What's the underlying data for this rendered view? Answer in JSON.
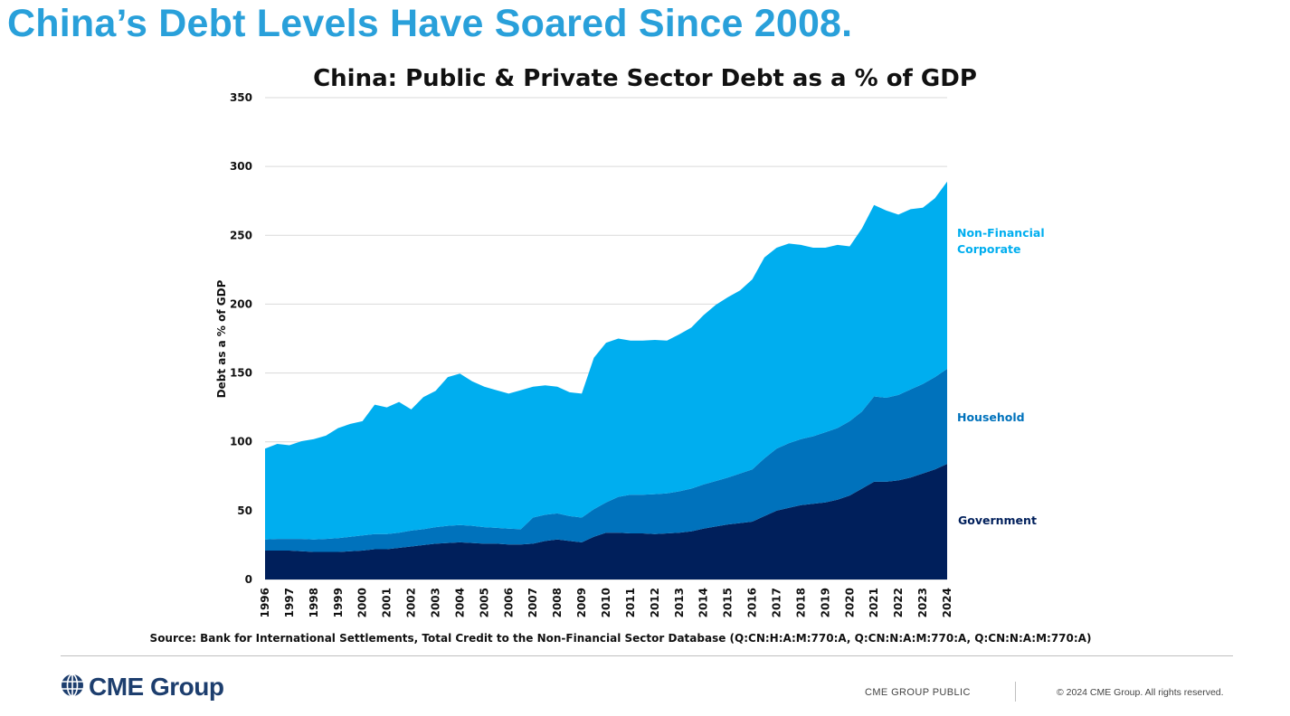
{
  "slide": {
    "title": "China’s Debt Levels Have Soared Since 2008."
  },
  "chart_data": {
    "type": "area",
    "stacked": true,
    "title": "China: Public & Private Sector Debt as a % of GDP",
    "xlabel": "",
    "ylabel": "Debt as a % of GDP",
    "ylim": [
      0,
      350
    ],
    "yticks": [
      0,
      50,
      100,
      150,
      200,
      250,
      300,
      350
    ],
    "xlim": [
      1996,
      2024
    ],
    "xticks": [
      "1996",
      "1997",
      "1998",
      "1999",
      "2000",
      "2001",
      "2002",
      "2003",
      "2004",
      "2005",
      "2006",
      "2007",
      "2008",
      "2009",
      "2010",
      "2011",
      "2012",
      "2013",
      "2014",
      "2015",
      "2016",
      "2017",
      "2018",
      "2019",
      "2020",
      "2021",
      "2022",
      "2023",
      "2024"
    ],
    "grid": true,
    "legend": "right-side inline labels",
    "x": [
      1996,
      1996.5,
      1997,
      1997.5,
      1998,
      1998.5,
      1999,
      1999.5,
      2000,
      2000.5,
      2001,
      2001.5,
      2002,
      2002.5,
      2003,
      2003.5,
      2004,
      2004.5,
      2005,
      2005.5,
      2006,
      2006.5,
      2007,
      2007.5,
      2008,
      2008.5,
      2009,
      2009.5,
      2010,
      2010.5,
      2011,
      2011.5,
      2012,
      2012.5,
      2013,
      2013.5,
      2014,
      2014.5,
      2015,
      2015.5,
      2016,
      2016.5,
      2017,
      2017.5,
      2018,
      2018.5,
      2019,
      2019.5,
      2020,
      2020.5,
      2021,
      2021.5,
      2022,
      2022.5,
      2023,
      2023.5,
      2024
    ],
    "series": [
      {
        "name": "Government",
        "color": "#001f5b",
        "values": [
          21,
          21,
          21,
          20.5,
          20,
          20,
          20,
          20.5,
          21,
          22,
          22,
          23,
          24,
          25,
          26,
          26.5,
          27,
          26.5,
          26,
          26,
          25.5,
          25.5,
          26,
          28,
          29,
          28,
          27,
          31,
          34,
          34,
          33.5,
          33.5,
          33,
          33.5,
          34,
          35,
          37,
          38.5,
          40,
          41,
          42,
          46,
          50,
          52,
          54,
          55,
          56,
          58,
          61,
          66,
          71,
          71,
          72,
          74,
          77,
          80,
          84
        ]
      },
      {
        "name": "Household",
        "values": [
          8,
          8.5,
          8.5,
          9,
          9,
          9.5,
          10,
          10.5,
          11,
          11,
          11,
          11,
          11.5,
          11.5,
          12,
          12.5,
          12.5,
          12.5,
          12,
          11.5,
          11.5,
          11,
          19,
          19,
          19,
          18,
          18,
          20,
          22,
          26,
          28,
          28,
          29,
          29,
          30,
          31,
          32,
          33,
          34,
          36,
          38,
          42,
          45,
          47,
          48,
          49,
          51,
          52,
          54,
          56,
          62,
          61,
          62,
          64,
          65,
          67,
          69
        ],
        "color": "#0072bc"
      },
      {
        "name": "Non-Financial Corporate",
        "values": [
          66,
          69,
          68,
          71,
          73,
          75,
          80,
          82,
          83,
          94,
          92,
          95,
          88,
          96,
          99,
          108,
          110,
          105,
          102,
          100,
          98,
          101,
          95,
          94,
          92,
          90,
          90,
          110,
          116,
          115,
          112,
          112,
          112,
          111,
          114,
          117,
          123,
          128,
          131,
          133,
          138,
          146,
          146,
          145,
          141,
          137,
          134,
          133,
          127,
          133,
          139,
          136,
          131,
          131,
          128,
          130,
          136
        ],
        "color": "#00aeef"
      }
    ],
    "source": "Source: Bank for International Settlements, Total Credit to the Non-Financial Sector Database (Q:CN:H:A:M:770:A, Q:CN:N:A:M:770:A, Q:CN:N:A:M:770:A)",
    "series_labels": {
      "corporate_line1": "Non-Financial",
      "corporate_line2": "Corporate",
      "household": "Household",
      "government": "Government"
    }
  },
  "footer": {
    "logo_text": "CME Group",
    "classification": "CME GROUP PUBLIC",
    "copyright": "© 2024 CME Group. All rights reserved."
  },
  "icons": {
    "logo": "globe-icon"
  }
}
